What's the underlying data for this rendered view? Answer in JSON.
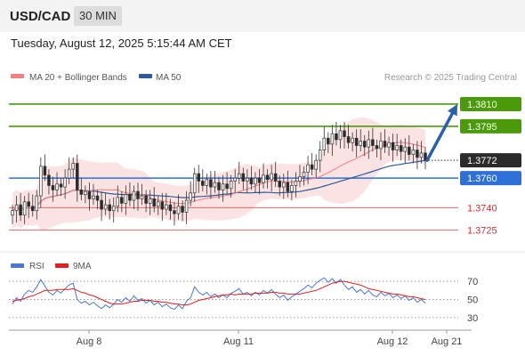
{
  "header": {
    "pair": "USD/CAD",
    "timeframe": "30 MIN",
    "datetime": "Tuesday, August 12, 2025 5:15:44 AM CET"
  },
  "legend": {
    "ma20": "MA 20 + Bollinger Bands",
    "ma50": "MA 50",
    "ma20_color": "#f08080",
    "ma50_color": "#2e5a9c",
    "credit": "Research © 2025 Trading Central"
  },
  "rsi_legend": {
    "rsi": "RSI",
    "ma9": "9MA",
    "rsi_color": "#4a78d0",
    "ma9_color": "#e02020"
  },
  "chart_data": [
    {
      "type": "candlestick",
      "x_labels": [
        "Aug 8",
        "Aug 11",
        "Aug 12",
        "Aug 21"
      ],
      "ylim": [
        1.3718,
        1.3822
      ],
      "last_price": 1.3772,
      "levels": [
        {
          "value": 1.381,
          "label": "1.3810",
          "kind": "resistance",
          "color": "#4a9a0a"
        },
        {
          "value": 1.3795,
          "label": "1.3795",
          "kind": "resistance",
          "color": "#4a9a0a"
        },
        {
          "value": 1.376,
          "label": "1.3760",
          "kind": "pivot",
          "color": "#2f6fd8"
        },
        {
          "value": 1.374,
          "label": "1.3740",
          "kind": "support",
          "color": "#d03030"
        },
        {
          "value": 1.3725,
          "label": "1.3725",
          "kind": "support",
          "color": "#d03030"
        }
      ],
      "projection": {
        "from": 1.3772,
        "to": 1.381,
        "color": "#2d5fa8"
      },
      "closes": [
        1.3738,
        1.3742,
        1.3735,
        1.3744,
        1.3741,
        1.3738,
        1.3748,
        1.3768,
        1.3762,
        1.3755,
        1.3752,
        1.3756,
        1.3754,
        1.376,
        1.3766,
        1.377,
        1.3752,
        1.3749,
        1.3751,
        1.3746,
        1.3748,
        1.3745,
        1.3739,
        1.3742,
        1.3738,
        1.3741,
        1.3747,
        1.3743,
        1.3749,
        1.3745,
        1.3751,
        1.3746,
        1.3748,
        1.3743,
        1.3746,
        1.3741,
        1.3744,
        1.3739,
        1.3742,
        1.3738,
        1.3736,
        1.3741,
        1.3737,
        1.3745,
        1.375,
        1.3763,
        1.3758,
        1.3755,
        1.3759,
        1.3754,
        1.3757,
        1.3752,
        1.3756,
        1.3753,
        1.3758,
        1.376,
        1.3763,
        1.3758,
        1.376,
        1.3756,
        1.376,
        1.3757,
        1.3762,
        1.3759,
        1.3763,
        1.3758,
        1.3754,
        1.3757,
        1.3751,
        1.3755,
        1.3758,
        1.3761,
        1.3764,
        1.3769,
        1.3766,
        1.3772,
        1.3779,
        1.3787,
        1.3783,
        1.379,
        1.3786,
        1.3792,
        1.3788,
        1.3784,
        1.3787,
        1.3782,
        1.3785,
        1.3781,
        1.3786,
        1.3782,
        1.378,
        1.3785,
        1.3781,
        1.3784,
        1.3779,
        1.3782,
        1.3778,
        1.3781,
        1.3776,
        1.3779,
        1.3774,
        1.3777,
        1.3772
      ]
    },
    {
      "type": "line",
      "title": "RSI",
      "yticks": [
        70,
        50,
        30
      ],
      "ylim": [
        22,
        78
      ],
      "rsi": [
        45,
        52,
        48,
        56,
        60,
        58,
        64,
        72,
        65,
        58,
        55,
        60,
        57,
        62,
        66,
        68,
        50,
        46,
        48,
        44,
        47,
        43,
        40,
        44,
        41,
        45,
        50,
        47,
        52,
        48,
        54,
        49,
        51,
        46,
        49,
        44,
        47,
        42,
        45,
        41,
        39,
        44,
        40,
        48,
        52,
        64,
        58,
        55,
        58,
        53,
        56,
        52,
        55,
        52,
        57,
        59,
        62,
        56,
        58,
        54,
        58,
        55,
        60,
        57,
        61,
        56,
        52,
        55,
        49,
        53,
        56,
        59,
        62,
        66,
        63,
        68,
        71,
        74,
        69,
        73,
        68,
        72,
        66,
        61,
        64,
        58,
        61,
        56,
        60,
        55,
        53,
        58,
        54,
        57,
        52,
        55,
        51,
        54,
        49,
        52,
        47,
        50,
        46
      ],
      "ma9": [
        48,
        49,
        50,
        51,
        53,
        54,
        56,
        58,
        60,
        60,
        60,
        61,
        61,
        61,
        61,
        62,
        60,
        58,
        57,
        55,
        54,
        52,
        50,
        48,
        46,
        45,
        45,
        45,
        46,
        47,
        48,
        48,
        49,
        49,
        49,
        48,
        48,
        47,
        47,
        46,
        45,
        45,
        44,
        44,
        45,
        47,
        49,
        50,
        51,
        52,
        53,
        54,
        55,
        55,
        56,
        55,
        56,
        56,
        56,
        56,
        57,
        57,
        57,
        57,
        58,
        58,
        57,
        57,
        56,
        56,
        56,
        56,
        57,
        58,
        59,
        60,
        62,
        64,
        66,
        68,
        69,
        70,
        70,
        69,
        68,
        67,
        66,
        64,
        62,
        61,
        60,
        59,
        58,
        57,
        56,
        56,
        55,
        54,
        53,
        53,
        52,
        51,
        50
      ]
    }
  ]
}
